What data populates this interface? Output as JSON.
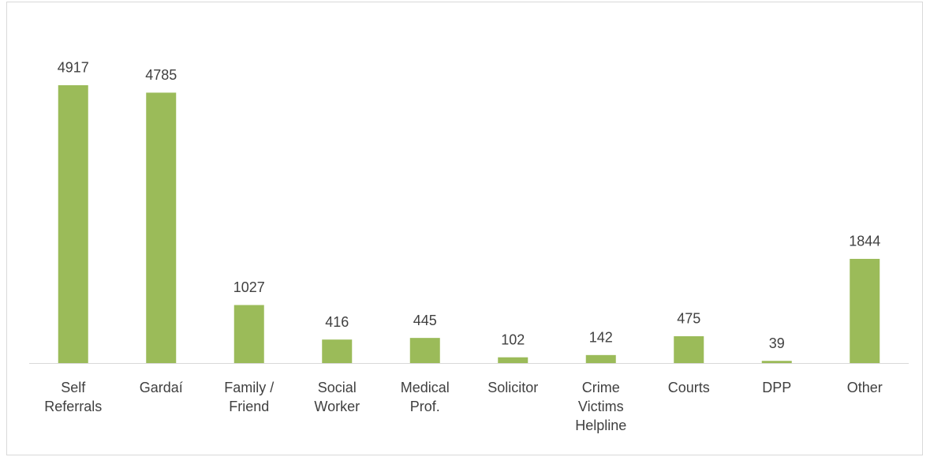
{
  "chart_data": {
    "type": "bar",
    "categories": [
      [
        "Self",
        "Referrals"
      ],
      [
        "Gardaí"
      ],
      [
        "Family /",
        "Friend"
      ],
      [
        "Social",
        "Worker"
      ],
      [
        "Medical",
        "Prof."
      ],
      [
        "Solicitor"
      ],
      [
        "Crime",
        "Victims",
        "Helpline"
      ],
      [
        "Courts"
      ],
      [
        "DPP"
      ],
      [
        "Other"
      ]
    ],
    "values": [
      4917,
      4785,
      1027,
      416,
      445,
      102,
      142,
      475,
      39,
      1844
    ],
    "color": "#9bbb59",
    "ylim": [
      0,
      5000
    ]
  }
}
